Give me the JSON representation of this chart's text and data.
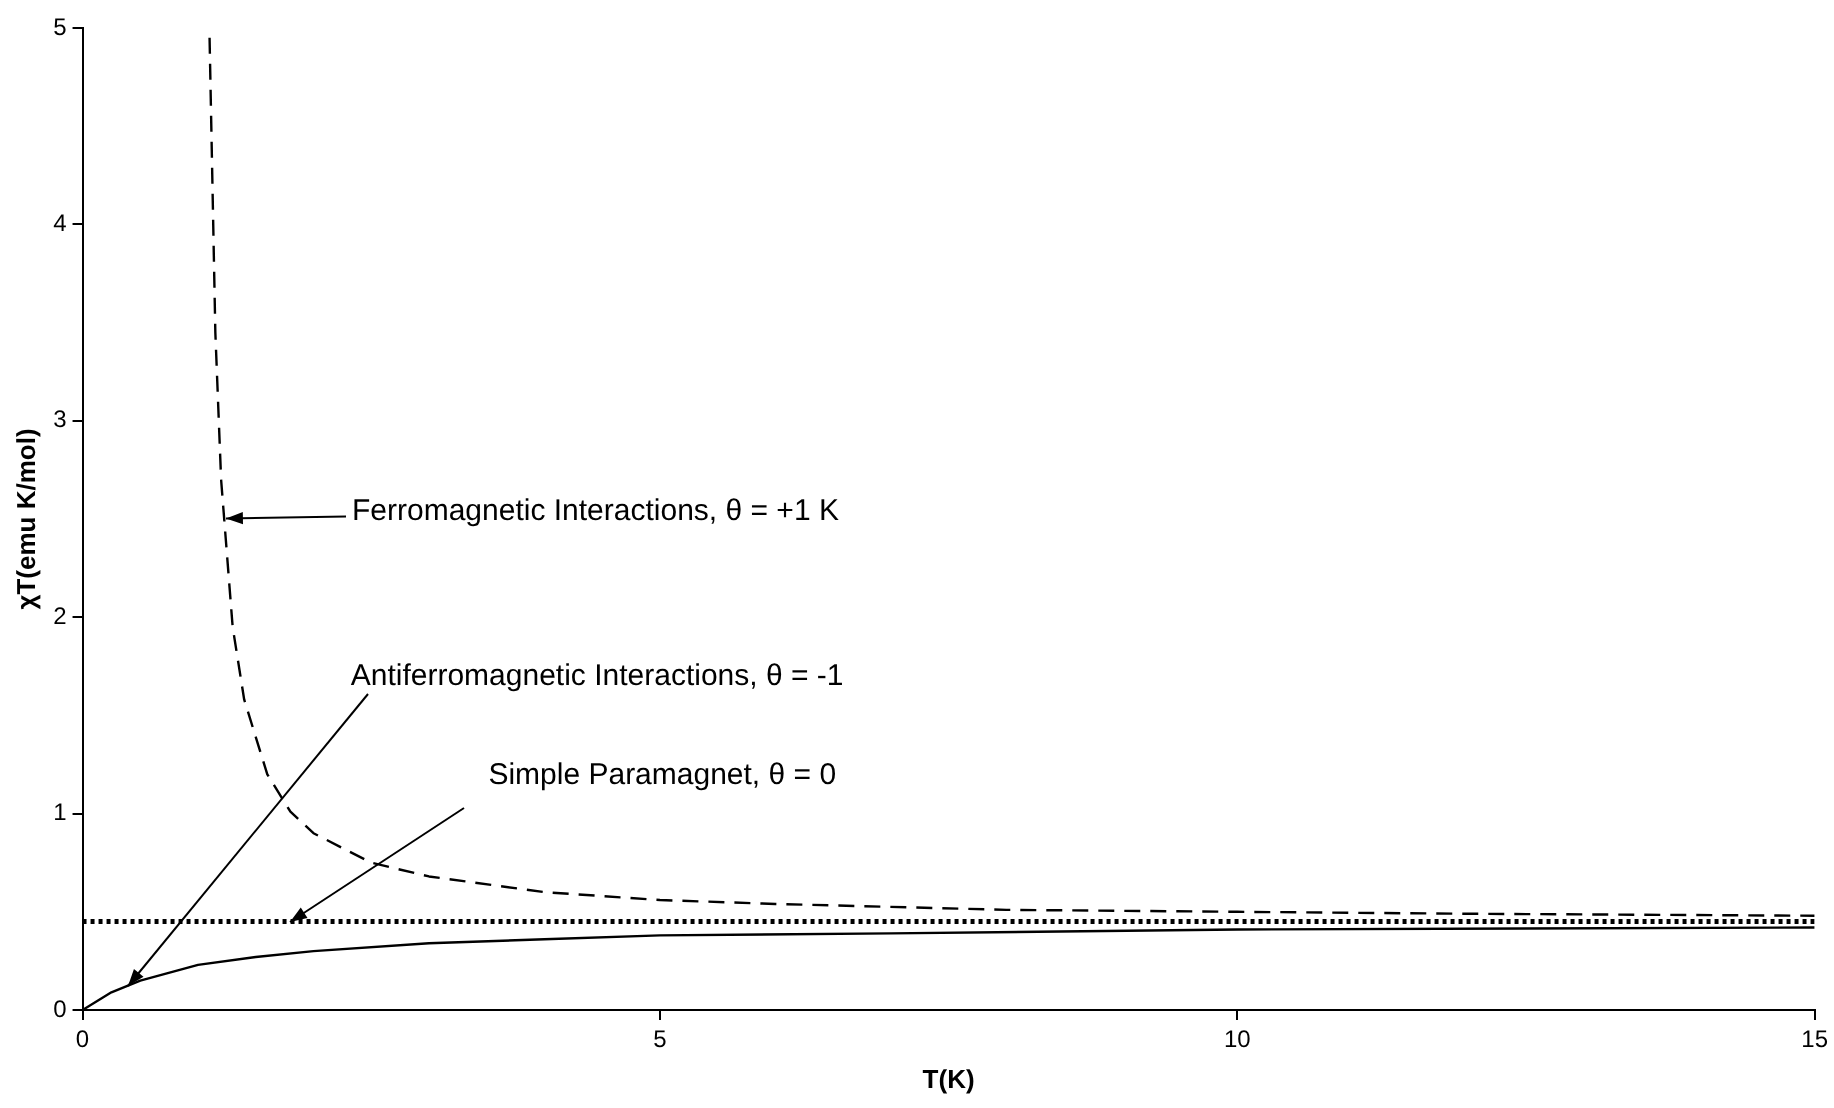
{
  "chart_data": {
    "type": "line",
    "xlabel": "T(K)",
    "ylabel": "χT(emu K/mol)",
    "xlim": [
      0,
      15
    ],
    "xticks": [
      0,
      5,
      10,
      15
    ],
    "ylim": [
      0,
      5
    ],
    "yticks": [
      0,
      1,
      2,
      3,
      4,
      5
    ],
    "grid": false,
    "legend": false,
    "marker": "none",
    "series": [
      {
        "color": "#000000",
        "line_style": "dashed",
        "x": [
          1.1,
          1.15,
          1.2,
          1.3,
          1.4,
          1.6,
          1.8,
          2,
          2.5,
          3,
          4,
          5,
          6,
          8,
          10,
          12,
          15
        ],
        "values": [
          4.95,
          3.45,
          2.7,
          1.95,
          1.58,
          1.2,
          1.01,
          0.9,
          0.75,
          0.68,
          0.6,
          0.56,
          0.54,
          0.51,
          0.5,
          0.49,
          0.48
        ]
      },
      {
        "color": "#000000",
        "line_style": "solid",
        "x": [
          0,
          0.25,
          0.5,
          1,
          1.5,
          2,
          3,
          4,
          5,
          7,
          10,
          15
        ],
        "values": [
          0,
          0.09,
          0.15,
          0.23,
          0.27,
          0.3,
          0.34,
          0.36,
          0.38,
          0.39,
          0.41,
          0.42
        ]
      },
      {
        "color": "#000000",
        "line_style": "dotted",
        "x": [
          0,
          15
        ],
        "values": [
          0.45,
          0.45
        ]
      }
    ],
    "annotations": [
      "Ferromagnetic Interactions, θ = +1 K",
      {
        "text": "Antiferromagnetic Interactions, θ = -1",
        "x": 0.4,
        "y": 0.12
      },
      {
        "text": "Simple Paramagnet, θ = 0",
        "x": 1.8,
        "y": 0.45
      }
    ]
  }
}
